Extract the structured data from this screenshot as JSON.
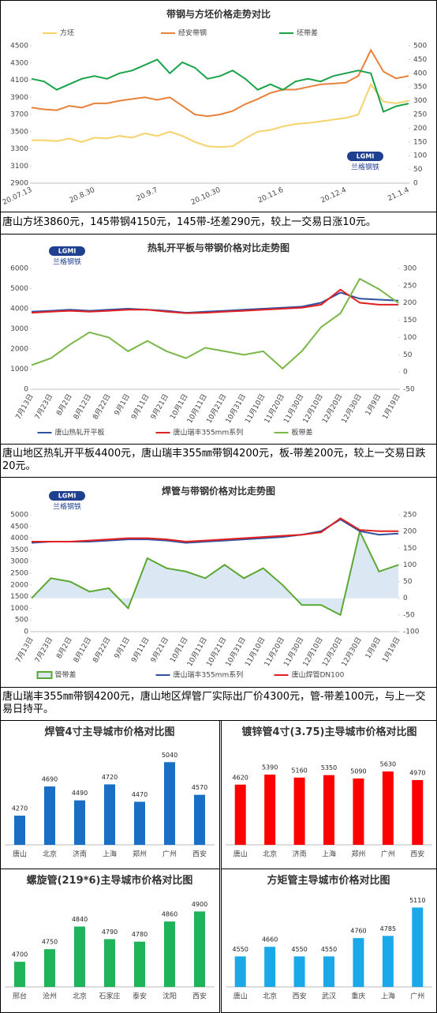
{
  "chart_data": [
    {
      "type": "line",
      "title": "带钢与方坯价格走势对比",
      "legend": "top",
      "grid": false,
      "logo": [
        "LGMI",
        "兰格钢铁"
      ],
      "categories": [
        "20.07.13",
        null,
        null,
        null,
        null,
        "20.8.30",
        null,
        null,
        null,
        null,
        "20.9.7",
        null,
        null,
        null,
        null,
        "20.10.30",
        null,
        null,
        null,
        null,
        "20.11.6",
        null,
        null,
        null,
        null,
        "20.12.4",
        null,
        null,
        null,
        null,
        "21.1.4"
      ],
      "ylim": [
        2900,
        4500
      ],
      "yticks": [
        2900,
        3100,
        3300,
        3500,
        3700,
        3900,
        4100,
        4300,
        4500
      ],
      "y2lim": [
        0,
        500
      ],
      "y2ticks": [
        0,
        50,
        100,
        150,
        200,
        250,
        300,
        350,
        400,
        450,
        500
      ],
      "series": [
        {
          "name": "方坯",
          "color": "#f5d26a",
          "axis": "y",
          "values": [
            3400,
            3400,
            3390,
            3420,
            3380,
            3430,
            3420,
            3450,
            3430,
            3480,
            3450,
            3500,
            3450,
            3380,
            3330,
            3320,
            3330,
            3420,
            3500,
            3520,
            3560,
            3590,
            3600,
            3620,
            3640,
            3660,
            3700,
            4050,
            3850,
            3830,
            3860
          ]
        },
        {
          "name": "经安带钢",
          "color": "#e8823a",
          "axis": "y",
          "values": [
            3780,
            3760,
            3750,
            3800,
            3780,
            3830,
            3830,
            3860,
            3880,
            3900,
            3870,
            3900,
            3800,
            3700,
            3680,
            3700,
            3740,
            3820,
            3880,
            3950,
            3990,
            3990,
            4020,
            4050,
            4060,
            4070,
            4150,
            4450,
            4200,
            4120,
            4150
          ]
        },
        {
          "name": "坯带差",
          "color": "#1aa34a",
          "axis": "y2",
          "values": [
            380,
            370,
            340,
            360,
            380,
            390,
            380,
            400,
            410,
            430,
            450,
            400,
            440,
            420,
            380,
            390,
            410,
            380,
            340,
            360,
            340,
            370,
            380,
            370,
            390,
            400,
            410,
            400,
            260,
            280,
            290
          ]
        }
      ]
    },
    {
      "type": "line",
      "title": "热轧开平板与带钢价格对比走势图",
      "legend": "bottom",
      "grid": false,
      "logo": [
        "LGMI",
        "兰格钢铁"
      ],
      "categories": [
        "7月13日",
        "7月23日",
        "8月2日",
        "8月12日",
        "8月22日",
        "9月1日",
        "9月11日",
        "9月21日",
        "10月1日",
        "10月11日",
        "10月21日",
        "10月31日",
        "11月10日",
        "11月20日",
        "11月30日",
        "12月10日",
        "12月20日",
        "12月30日",
        "1月9日",
        "1月19日"
      ],
      "ylim": [
        0,
        6000
      ],
      "yticks": [
        0,
        1000,
        2000,
        3000,
        4000,
        5000,
        6000
      ],
      "y2lim": [
        -50,
        300
      ],
      "y2ticks": [
        -50,
        0,
        50,
        100,
        150,
        200,
        250,
        300
      ],
      "series": [
        {
          "name": "唐山热轧开平板",
          "color": "#3050a0",
          "axis": "y",
          "values": [
            3850,
            3900,
            3950,
            3900,
            3950,
            4000,
            3950,
            3900,
            3800,
            3850,
            3900,
            3950,
            4000,
            4050,
            4100,
            4300,
            4800,
            4500,
            4450,
            4400
          ]
        },
        {
          "name": "唐山瑞丰355mm系列",
          "color": "#e02020",
          "axis": "y",
          "values": [
            3800,
            3850,
            3900,
            3850,
            3900,
            3950,
            3950,
            3850,
            3780,
            3800,
            3850,
            3900,
            3950,
            4000,
            4050,
            4200,
            4950,
            4300,
            4200,
            4200
          ]
        },
        {
          "name": "板带差",
          "color": "#7ab648",
          "axis": "y2",
          "values": [
            20,
            40,
            80,
            115,
            100,
            60,
            90,
            60,
            40,
            70,
            60,
            50,
            60,
            10,
            60,
            130,
            170,
            270,
            240,
            200
          ]
        }
      ]
    },
    {
      "type": "line",
      "title": "焊管与带钢价格对比走势图",
      "legend": "bottom",
      "grid": false,
      "logo": [
        "LGMI",
        "兰格钢铁"
      ],
      "categories": [
        "7月13日",
        "7月23日",
        "8月2日",
        "8月12日",
        "8月22日",
        "9月1日",
        "9月11日",
        "9月21日",
        "10月1日",
        "10月11日",
        "10月21日",
        "10月31日",
        "11月10日",
        "11月20日",
        "11月30日",
        "12月10日",
        "12月20日",
        "12月30日",
        "1月9日",
        "1月19日"
      ],
      "ylim": [
        0,
        5000
      ],
      "yticks": [
        0,
        500,
        1000,
        1500,
        2000,
        2500,
        3000,
        3500,
        4000,
        4500,
        5000
      ],
      "y2lim": [
        -100,
        250
      ],
      "y2ticks": [
        -100,
        -50,
        0,
        50,
        100,
        150,
        200,
        250
      ],
      "series": [
        {
          "name": "管带差",
          "color": "#5aa832",
          "axis": "y2",
          "style": "area",
          "values": [
            0,
            60,
            50,
            20,
            30,
            -30,
            120,
            90,
            80,
            60,
            100,
            60,
            90,
            40,
            -20,
            -20,
            -50,
            200,
            80,
            100
          ]
        },
        {
          "name": "唐山瑞丰355mm系列",
          "color": "#3050a0",
          "axis": "y",
          "values": [
            3800,
            3850,
            3850,
            3850,
            3900,
            3950,
            3950,
            3900,
            3800,
            3850,
            3900,
            3950,
            4000,
            4050,
            4150,
            4300,
            4800,
            4300,
            4150,
            4200
          ]
        },
        {
          "name": "唐山焊管DN100",
          "color": "#e02020",
          "axis": "y",
          "values": [
            3850,
            3850,
            3850,
            3900,
            3950,
            4000,
            4000,
            3950,
            3850,
            3900,
            3950,
            4000,
            4050,
            4100,
            4150,
            4250,
            4850,
            4350,
            4300,
            4300
          ]
        }
      ]
    },
    {
      "type": "bar",
      "title": "焊管4寸主导城市价格对比图",
      "color": "#1a6fc4",
      "ylim": [
        3850,
        5100
      ],
      "categories": [
        "唐山",
        "北京",
        "济南",
        "上海",
        "郑州",
        "广州",
        "西安"
      ],
      "values": [
        4270,
        4690,
        4490,
        4720,
        4470,
        5040,
        4570
      ]
    },
    {
      "type": "bar",
      "title": "镀锌管4寸(3.75)主导城市价格对比图",
      "color": "#ff0000",
      "ylim": [
        0,
        6000
      ],
      "categories": [
        "唐山",
        "北京",
        "济南",
        "上海",
        "郑州",
        "广州",
        "西安"
      ],
      "values": [
        4620,
        5390,
        5160,
        5350,
        5090,
        5630,
        4970
      ]
    },
    {
      "type": "bar",
      "title": "螺旋管(219*6)主导城市价格对比图",
      "color": "#1fb35a",
      "ylim": [
        4600,
        4920
      ],
      "categories": [
        "邢台",
        "沧州",
        "北京",
        "石家庄",
        "泰安",
        "沈阳",
        "西安"
      ],
      "values": [
        4700,
        4750,
        4840,
        4790,
        4780,
        4860,
        4900
      ]
    },
    {
      "type": "bar",
      "title": "方矩管主导城市价格对比图",
      "color": "#1aa8e8",
      "ylim": [
        4200,
        5150
      ],
      "categories": [
        "唐山",
        "北京",
        "西安",
        "武汉",
        "重庆",
        "上海",
        "广州"
      ],
      "values": [
        4550,
        4660,
        4550,
        4550,
        4760,
        4785,
        5110
      ]
    }
  ],
  "captions": [
    "唐山方坯3860元，145带钢4150元，145带-坯差290元，较上一交易日涨10元。",
    "唐山地区热轧开平板4400元，唐山瑞丰355㎜带钢4200元，板-带差200元，较上一交易日跌20元。",
    "唐山瑞丰355㎜带钢4200元，唐山地区焊管厂实际出厂价4300元，管-带差100元，与上一交易日持平。"
  ]
}
